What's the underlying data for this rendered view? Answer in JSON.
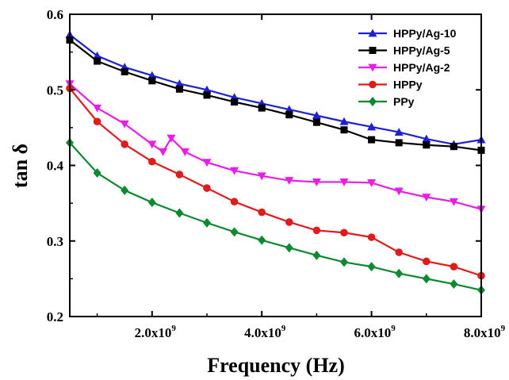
{
  "chart_data": {
    "type": "line",
    "xlabel": "Frequency (Hz)",
    "ylabel": "tan δ",
    "xlim": [
      500000000,
      8000000000
    ],
    "ylim": [
      0.2,
      0.6
    ],
    "xticks": [
      {
        "value": 2000000000,
        "mant": "2.0x10",
        "exp": "9"
      },
      {
        "value": 4000000000,
        "mant": "4.0x10",
        "exp": "9"
      },
      {
        "value": 6000000000,
        "mant": "6.0x10",
        "exp": "9"
      },
      {
        "value": 8000000000,
        "mant": "8.0x10",
        "exp": "9"
      }
    ],
    "yticks": [
      "0.2",
      "0.3",
      "0.4",
      "0.5",
      "0.6"
    ],
    "legend_position": "top-right",
    "series": [
      {
        "name": "HPPy/Ag-10",
        "color": "#1f1fd6",
        "marker": "triangle-up",
        "x": [
          0.5,
          1.0,
          1.5,
          2.0,
          2.5,
          3.0,
          3.5,
          4.0,
          4.5,
          5.0,
          5.5,
          6.0,
          6.5,
          7.0,
          7.5,
          8.0
        ],
        "y": [
          0.573,
          0.545,
          0.53,
          0.519,
          0.508,
          0.5,
          0.49,
          0.482,
          0.474,
          0.466,
          0.458,
          0.451,
          0.444,
          0.435,
          0.428,
          0.434
        ]
      },
      {
        "name": "HPPy/Ag-5",
        "color": "#000000",
        "marker": "square",
        "x": [
          0.5,
          1.0,
          1.5,
          2.0,
          2.5,
          3.0,
          3.5,
          4.0,
          4.5,
          5.0,
          5.5,
          6.0,
          6.5,
          7.0,
          7.5,
          8.0
        ],
        "y": [
          0.566,
          0.538,
          0.524,
          0.512,
          0.501,
          0.493,
          0.484,
          0.476,
          0.467,
          0.457,
          0.447,
          0.434,
          0.43,
          0.427,
          0.425,
          0.42
        ]
      },
      {
        "name": "HPPy/Ag-2",
        "color": "#e81ee8",
        "marker": "triangle-down",
        "x": [
          0.5,
          1.0,
          1.5,
          2.0,
          2.2,
          2.35,
          2.6,
          3.0,
          3.5,
          4.0,
          4.5,
          5.0,
          5.5,
          6.0,
          6.5,
          7.0,
          7.5,
          8.0
        ],
        "y": [
          0.508,
          0.476,
          0.455,
          0.428,
          0.418,
          0.436,
          0.418,
          0.404,
          0.393,
          0.386,
          0.38,
          0.378,
          0.378,
          0.377,
          0.366,
          0.358,
          0.352,
          0.342
        ]
      },
      {
        "name": "HPPy",
        "color": "#e11b1b",
        "marker": "circle",
        "x": [
          0.5,
          1.0,
          1.5,
          2.0,
          2.5,
          3.0,
          3.5,
          4.0,
          4.5,
          5.0,
          5.5,
          6.0,
          6.5,
          7.0,
          7.5,
          8.0
        ],
        "y": [
          0.502,
          0.458,
          0.428,
          0.405,
          0.388,
          0.37,
          0.352,
          0.338,
          0.325,
          0.314,
          0.311,
          0.305,
          0.285,
          0.273,
          0.266,
          0.254
        ]
      },
      {
        "name": "PPy",
        "color": "#0b8a2f",
        "marker": "diamond",
        "x": [
          0.5,
          1.0,
          1.5,
          2.0,
          2.5,
          3.0,
          3.5,
          4.0,
          4.5,
          5.0,
          5.5,
          6.0,
          6.5,
          7.0,
          7.5,
          8.0
        ],
        "y": [
          0.43,
          0.39,
          0.367,
          0.351,
          0.337,
          0.324,
          0.312,
          0.301,
          0.291,
          0.281,
          0.272,
          0.266,
          0.257,
          0.25,
          0.243,
          0.235
        ]
      }
    ]
  }
}
